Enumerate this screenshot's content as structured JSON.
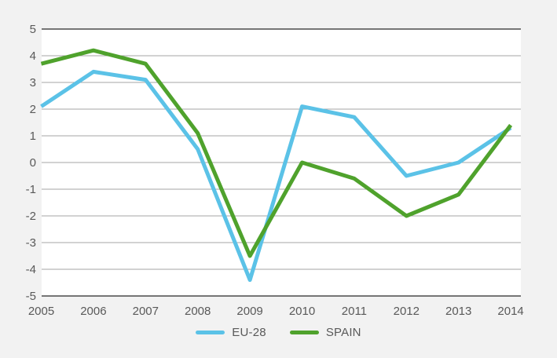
{
  "colors": {
    "page_background": "#f2f2f2",
    "plot_background": "#ffffff",
    "gridline": "#a6a6a6",
    "frame_line": "#4a4a4a",
    "tick_text": "#595959",
    "eu28_blue": "#5bc2e7",
    "spain_green": "#4fa22c"
  },
  "chart_data": {
    "type": "line",
    "title": "",
    "xlabel": "",
    "ylabel": "",
    "categories": [
      "2005",
      "2006",
      "2007",
      "2008",
      "2009",
      "2010",
      "2011",
      "2012",
      "2013",
      "2014"
    ],
    "y_ticks": [
      5,
      4,
      3,
      2,
      1,
      0,
      -1,
      -2,
      -3,
      -4,
      -5
    ],
    "ylim": [
      -5,
      5
    ],
    "grid": "horizontal-only",
    "legend_position": "bottom-center",
    "series": [
      {
        "name": "EU-28",
        "color": "#5bc2e7",
        "values": [
          2.1,
          3.4,
          3.1,
          0.5,
          -4.4,
          2.1,
          1.7,
          -0.5,
          0.0,
          1.3
        ]
      },
      {
        "name": "SPAIN",
        "color": "#4fa22c",
        "values": [
          3.7,
          4.2,
          3.7,
          1.1,
          -3.5,
          0.0,
          -0.6,
          -2.0,
          -1.2,
          1.4
        ]
      }
    ]
  }
}
